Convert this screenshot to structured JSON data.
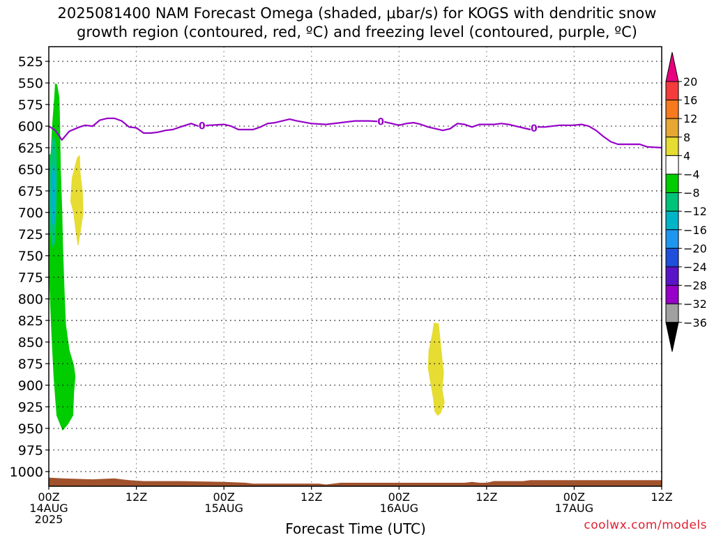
{
  "title": {
    "line1": "2025081400 NAM Forecast Omega (shaded, μbar/s) for KOGS with dendritic snow",
    "line2": "growth region (contoured, red, ºC) and freezing level (contoured, purple, ºC)"
  },
  "watermark": "coolwx.com/models",
  "chart_data": {
    "type": "contour",
    "xlabel": "Forecast Time (UTC)",
    "x_ticks": [
      {
        "hour": 0,
        "lines": [
          "00Z",
          "14AUG",
          "2025"
        ]
      },
      {
        "hour": 12,
        "lines": [
          "12Z"
        ]
      },
      {
        "hour": 24,
        "lines": [
          "00Z",
          "15AUG"
        ]
      },
      {
        "hour": 36,
        "lines": [
          "12Z"
        ]
      },
      {
        "hour": 48,
        "lines": [
          "00Z",
          "16AUG"
        ]
      },
      {
        "hour": 60,
        "lines": [
          "12Z"
        ]
      },
      {
        "hour": 72,
        "lines": [
          "00Z",
          "17AUG"
        ]
      },
      {
        "hour": 84,
        "lines": [
          "12Z"
        ]
      }
    ],
    "xlim": [
      0,
      84
    ],
    "y_axis": {
      "ticks": [
        525,
        550,
        575,
        600,
        625,
        650,
        675,
        700,
        725,
        750,
        775,
        800,
        825,
        850,
        875,
        900,
        925,
        950,
        975,
        1000
      ],
      "range": [
        508,
        1017
      ],
      "inverted": true
    },
    "grid": "dotted",
    "colorbar": {
      "labels": [
        "20",
        "16",
        "12",
        "8",
        "4",
        "−4",
        "−8",
        "−12",
        "−16",
        "−20",
        "−24",
        "−28",
        "−32",
        "−36"
      ],
      "colors": [
        "#e8007f",
        "#f53b3b",
        "#f77a1f",
        "#e6a832",
        "#e6dc32",
        "#ffffff",
        "#00cc00",
        "#00c37a",
        "#00b4c8",
        "#1e96f0",
        "#1e50dc",
        "#5a14c8",
        "#9600c8",
        "#a0a0a0",
        "#000000"
      ]
    },
    "freezing_level": {
      "color": "#9600c8",
      "label": "0",
      "label_hours": [
        21,
        45.5,
        66.5
      ],
      "points": [
        [
          0,
          600
        ],
        [
          0.9,
          605
        ],
        [
          1.8,
          616
        ],
        [
          2.8,
          606
        ],
        [
          4.2,
          601
        ],
        [
          5,
          599
        ],
        [
          6,
          600
        ],
        [
          7,
          593
        ],
        [
          8,
          591
        ],
        [
          9,
          591
        ],
        [
          10,
          594
        ],
        [
          11,
          601
        ],
        [
          12,
          602
        ],
        [
          13,
          608
        ],
        [
          14,
          608
        ],
        [
          15,
          607
        ],
        [
          16,
          605
        ],
        [
          17,
          604
        ],
        [
          18,
          601
        ],
        [
          19.5,
          597
        ],
        [
          20.5,
          600
        ],
        [
          22,
          599
        ],
        [
          24,
          598
        ],
        [
          25,
          600
        ],
        [
          26,
          604
        ],
        [
          28,
          604
        ],
        [
          29,
          601
        ],
        [
          30,
          597
        ],
        [
          31,
          596
        ],
        [
          32,
          594
        ],
        [
          33,
          592
        ],
        [
          34,
          594
        ],
        [
          36,
          597
        ],
        [
          38,
          598
        ],
        [
          40,
          596
        ],
        [
          42,
          594
        ],
        [
          44,
          594
        ],
        [
          46,
          595
        ],
        [
          47,
          597
        ],
        [
          48,
          599
        ],
        [
          49,
          597
        ],
        [
          50,
          596
        ],
        [
          51,
          598
        ],
        [
          52,
          601
        ],
        [
          54,
          605
        ],
        [
          55,
          603
        ],
        [
          56,
          597
        ],
        [
          57,
          598
        ],
        [
          58,
          601
        ],
        [
          59,
          598
        ],
        [
          61,
          598
        ],
        [
          62,
          597
        ],
        [
          63,
          598
        ],
        [
          64,
          600
        ],
        [
          65,
          602
        ],
        [
          66,
          604
        ],
        [
          67,
          601
        ],
        [
          68,
          601
        ],
        [
          70,
          599
        ],
        [
          72,
          599
        ],
        [
          73,
          598
        ],
        [
          74,
          600
        ],
        [
          75,
          605
        ],
        [
          76,
          612
        ],
        [
          77,
          618
        ],
        [
          78,
          621
        ],
        [
          80,
          621
        ],
        [
          81,
          621
        ],
        [
          82,
          624
        ],
        [
          84,
          625
        ]
      ]
    },
    "omega_regions": [
      {
        "level": "-8",
        "color": "#00cc00",
        "points": [
          [
            0.3,
            633
          ],
          [
            0.5,
            600
          ],
          [
            0.8,
            565
          ],
          [
            0.9,
            551
          ],
          [
            1.1,
            552
          ],
          [
            1.4,
            567
          ],
          [
            1.5,
            600
          ],
          [
            1.6,
            650
          ],
          [
            1.8,
            700
          ],
          [
            1.9,
            740
          ],
          [
            2.1,
            790
          ],
          [
            2.3,
            830
          ],
          [
            2.8,
            860
          ],
          [
            3.4,
            877
          ],
          [
            3.6,
            890
          ],
          [
            3.4,
            910
          ],
          [
            3.3,
            935
          ],
          [
            2.6,
            945
          ],
          [
            1.9,
            952
          ],
          [
            1.1,
            935
          ],
          [
            0.7,
            890
          ],
          [
            0.4,
            840
          ],
          [
            0.2,
            800
          ],
          [
            0.0,
            760
          ],
          [
            0.0,
            633
          ]
        ]
      },
      {
        "level": "-12",
        "color": "#00c37a",
        "points": [
          [
            0.2,
            645
          ],
          [
            0.4,
            618
          ],
          [
            0.7,
            612
          ],
          [
            1.0,
            625
          ],
          [
            1.1,
            660
          ],
          [
            1.0,
            700
          ],
          [
            0.8,
            735
          ],
          [
            0.5,
            740
          ],
          [
            0.2,
            720
          ],
          [
            0.1,
            680
          ]
        ]
      },
      {
        "level": "-16",
        "color": "#00b4c8",
        "points": [
          [
            0.35,
            660
          ],
          [
            0.6,
            645
          ],
          [
            0.85,
            655
          ],
          [
            0.9,
            690
          ],
          [
            0.75,
            715
          ],
          [
            0.45,
            712
          ],
          [
            0.3,
            690
          ]
        ]
      },
      {
        "level": "4",
        "color": "#e6dc32",
        "points": [
          [
            3.9,
            637
          ],
          [
            4.2,
            634
          ],
          [
            4.3,
            655
          ],
          [
            4.6,
            675
          ],
          [
            4.7,
            700
          ],
          [
            4.3,
            723
          ],
          [
            4.0,
            738
          ],
          [
            3.7,
            720
          ],
          [
            3.4,
            700
          ],
          [
            3.0,
            687
          ],
          [
            3.2,
            660
          ]
        ]
      },
      {
        "level": "4",
        "color": "#e6dc32",
        "points": [
          [
            52.8,
            828
          ],
          [
            53.4,
            829
          ],
          [
            53.6,
            845
          ],
          [
            53.9,
            870
          ],
          [
            54.1,
            885
          ],
          [
            53.9,
            905
          ],
          [
            54.2,
            920
          ],
          [
            53.7,
            932
          ],
          [
            53.3,
            935
          ],
          [
            52.9,
            930
          ],
          [
            52.7,
            915
          ],
          [
            52.4,
            900
          ],
          [
            52.0,
            880
          ],
          [
            52.1,
            860
          ],
          [
            52.6,
            840
          ]
        ]
      }
    ],
    "terrain": {
      "color": "#a0522d",
      "surface": [
        [
          0,
          1007
        ],
        [
          2,
          1008
        ],
        [
          6,
          1009
        ],
        [
          9,
          1008
        ],
        [
          10,
          1009
        ],
        [
          11,
          1010
        ],
        [
          13,
          1011
        ],
        [
          18,
          1011
        ],
        [
          24,
          1012
        ],
        [
          27,
          1013
        ],
        [
          28,
          1014
        ],
        [
          37,
          1014
        ],
        [
          38,
          1015
        ],
        [
          39,
          1014
        ],
        [
          40,
          1013
        ],
        [
          53,
          1013
        ],
        [
          57,
          1013
        ],
        [
          58,
          1012
        ],
        [
          59,
          1013
        ],
        [
          60,
          1013
        ],
        [
          61,
          1011
        ],
        [
          65,
          1011
        ],
        [
          66,
          1010
        ],
        [
          84,
          1010
        ]
      ]
    }
  }
}
